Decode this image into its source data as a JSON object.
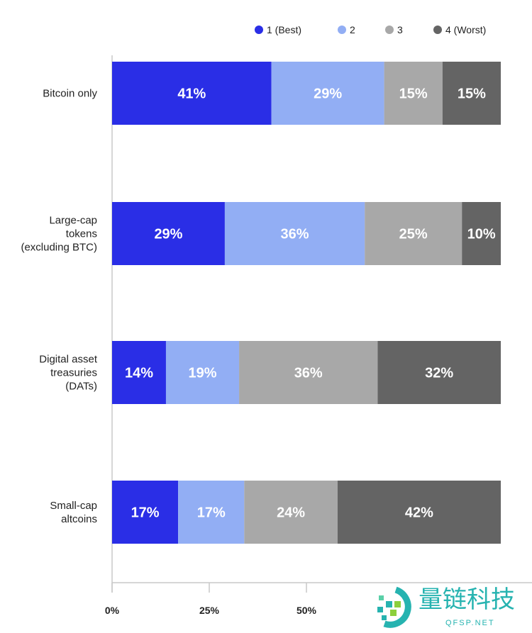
{
  "chart_data": {
    "type": "bar",
    "orientation": "horizontal",
    "stacked": true,
    "categories": [
      [
        "Bitcoin only"
      ],
      [
        "Large-cap",
        "tokens",
        "(excluding BTC)"
      ],
      [
        "Digital asset",
        "treasuries",
        "(DATs)"
      ],
      [
        "Small-cap",
        "altcoins"
      ]
    ],
    "series": [
      {
        "name": "1 (Best)",
        "color": "#2a2ee6",
        "values": [
          41,
          29,
          14,
          17
        ]
      },
      {
        "name": "2",
        "color": "#92aef4",
        "values": [
          29,
          36,
          19,
          17
        ]
      },
      {
        "name": "3",
        "color": "#a8a8a8",
        "values": [
          15,
          25,
          36,
          24
        ]
      },
      {
        "name": "4 (Worst)",
        "color": "#646464",
        "values": [
          15,
          10,
          32,
          42
        ]
      }
    ],
    "data_labels": [
      [
        "41%",
        "29%",
        "15%",
        "15%"
      ],
      [
        "29%",
        "36%",
        "25%",
        "10%"
      ],
      [
        "14%",
        "19%",
        "36%",
        "32%"
      ],
      [
        "17%",
        "17%",
        "24%",
        "42%"
      ]
    ],
    "xlim": [
      0,
      100
    ],
    "x_ticks": [
      "0%",
      "25%",
      "50%"
    ],
    "x_tick_values": [
      0,
      25,
      50
    ],
    "legend_placement": "top-right",
    "grid": false
  },
  "watermark": {
    "text": "量链科技",
    "subtext": "QFSP.NET"
  }
}
